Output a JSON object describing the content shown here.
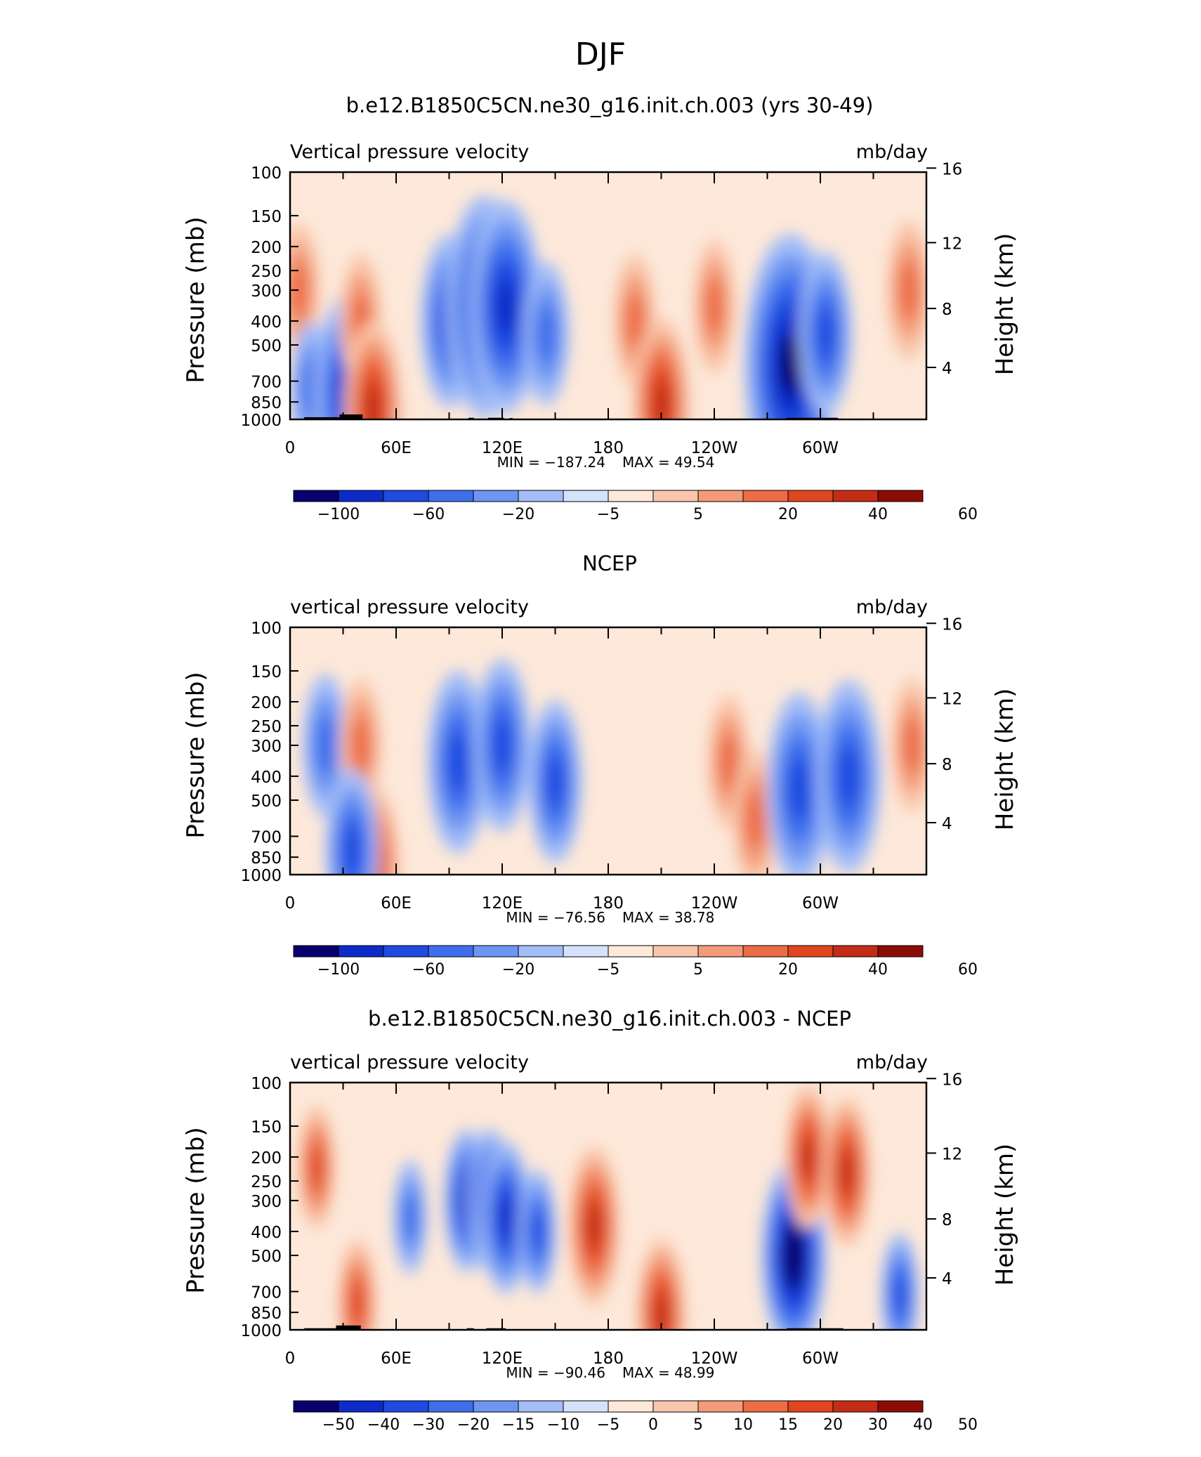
{
  "figure": {
    "season": "DJF"
  },
  "scales": {
    "p_ticks": [
      100,
      150,
      200,
      250,
      300,
      400,
      500,
      700,
      850,
      1000
    ],
    "h_ticks": [
      16,
      12,
      8,
      4
    ],
    "lon_ticks": [
      "0",
      "60E",
      "120E",
      "180",
      "120W",
      "60W"
    ],
    "lon_range": [
      0,
      360
    ]
  },
  "panels": [
    {
      "title": "b.e12.B1850C5CN.ne30_g16.init.ch.003 (yrs 30-49)",
      "left_label": "Vertical pressure velocity",
      "right_label": "mb/day",
      "ylabel": "Pressure (mb)",
      "y2label": "Height (km)",
      "min_text": "MIN = −187.24",
      "max_text": "MAX =   49.54",
      "cb_labels": [
        "−100",
        "−60",
        "−20",
        "−5",
        "5",
        "20",
        "40",
        "60"
      ],
      "show_land": true
    },
    {
      "title": "NCEP",
      "left_label": "vertical pressure velocity",
      "right_label": "mb/day",
      "ylabel": "Pressure (mb)",
      "y2label": "Height (km)",
      "min_text": "MIN = −76.56",
      "max_text": "MAX =   38.78",
      "cb_labels": [
        "−100",
        "−60",
        "−20",
        "−5",
        "5",
        "20",
        "40",
        "60"
      ],
      "show_land": false
    },
    {
      "title": "b.e12.B1850C5CN.ne30_g16.init.ch.003 - NCEP",
      "left_label": "vertical pressure velocity",
      "right_label": "mb/day",
      "ylabel": "Pressure (mb)",
      "y2label": "Height (km)",
      "min_text": "MIN = −90.46",
      "max_text": "MAX =   48.99",
      "cb_labels": [
        "−50",
        "−40",
        "−30",
        "−20",
        "−15",
        "−10",
        "−5",
        "0",
        "5",
        "10",
        "15",
        "20",
        "30",
        "40",
        "50"
      ],
      "show_land": true
    }
  ],
  "colors": {
    "levels": [
      "#08006e",
      "#0d2bc8",
      "#1f4be0",
      "#3e6eec",
      "#6d95f2",
      "#a3bdf8",
      "#d4e2fb",
      "#fde8d9",
      "#f9c6ab",
      "#f39b78",
      "#ec6c45",
      "#e0461f",
      "#c42d15",
      "#8c0d06"
    ],
    "land": "#000000"
  },
  "chart_data": [
    {
      "type": "heatmap",
      "title": "b.e12.B1850C5CN.ne30_g16.init.ch.003 (yrs 30-49)",
      "xlabel": "",
      "ylabel": "Pressure (mb)",
      "y2label": "Height (km)",
      "units": "mb/day",
      "xlim": [
        0,
        360
      ],
      "ylim": [
        1000,
        100
      ],
      "levels": [
        -100,
        -80,
        -60,
        -40,
        -20,
        -10,
        -5,
        0,
        5,
        10,
        20,
        30,
        40,
        50,
        60
      ],
      "min": -187.24,
      "max": 49.54,
      "features": [
        {
          "lon": 5,
          "p": 300,
          "value": 25
        },
        {
          "lon": 12,
          "p": 750,
          "value": -25
        },
        {
          "lon": 33,
          "p": 800,
          "value": -60
        },
        {
          "lon": 40,
          "p": 400,
          "value": 25
        },
        {
          "lon": 47,
          "p": 900,
          "value": 45
        },
        {
          "lon": 90,
          "p": 400,
          "value": -45
        },
        {
          "lon": 110,
          "p": 350,
          "value": -70
        },
        {
          "lon": 122,
          "p": 350,
          "value": -65
        },
        {
          "lon": 145,
          "p": 450,
          "value": -30
        },
        {
          "lon": 195,
          "p": 400,
          "value": 25
        },
        {
          "lon": 210,
          "p": 870,
          "value": 45
        },
        {
          "lon": 240,
          "p": 350,
          "value": 25
        },
        {
          "lon": 283,
          "p": 600,
          "value": -90
        },
        {
          "lon": 303,
          "p": 450,
          "value": -40
        },
        {
          "lon": 350,
          "p": 300,
          "value": 28
        }
      ]
    },
    {
      "type": "heatmap",
      "title": "NCEP",
      "xlabel": "",
      "ylabel": "Pressure (mb)",
      "y2label": "Height (km)",
      "units": "mb/day",
      "xlim": [
        0,
        360
      ],
      "ylim": [
        1000,
        100
      ],
      "levels": [
        -100,
        -80,
        -60,
        -40,
        -20,
        -10,
        -5,
        0,
        5,
        10,
        20,
        30,
        40,
        50,
        60
      ],
      "min": -76.56,
      "max": 38.78,
      "features": [
        {
          "lon": 20,
          "p": 300,
          "value": -30
        },
        {
          "lon": 40,
          "p": 300,
          "value": 25
        },
        {
          "lon": 48,
          "p": 900,
          "value": 35
        },
        {
          "lon": 35,
          "p": 800,
          "value": -40
        },
        {
          "lon": 95,
          "p": 350,
          "value": -50
        },
        {
          "lon": 120,
          "p": 300,
          "value": -45
        },
        {
          "lon": 150,
          "p": 420,
          "value": -40
        },
        {
          "lon": 248,
          "p": 350,
          "value": 25
        },
        {
          "lon": 263,
          "p": 600,
          "value": 28
        },
        {
          "lon": 288,
          "p": 450,
          "value": -55
        },
        {
          "lon": 316,
          "p": 400,
          "value": -55
        },
        {
          "lon": 352,
          "p": 300,
          "value": 25
        }
      ]
    },
    {
      "type": "heatmap",
      "title": "b.e12.B1850C5CN.ne30_g16.init.ch.003 - NCEP",
      "xlabel": "",
      "ylabel": "Pressure (mb)",
      "y2label": "Height (km)",
      "units": "mb/day",
      "xlim": [
        0,
        360
      ],
      "ylim": [
        1000,
        100
      ],
      "levels": [
        -50,
        -40,
        -30,
        -20,
        -15,
        -10,
        -5,
        0,
        5,
        10,
        15,
        20,
        30,
        40,
        50
      ],
      "min": -90.46,
      "max": 48.99,
      "features": [
        {
          "lon": 15,
          "p": 220,
          "value": 20
        },
        {
          "lon": 38,
          "p": 780,
          "value": 22
        },
        {
          "lon": 68,
          "p": 350,
          "value": -15
        },
        {
          "lon": 100,
          "p": 300,
          "value": -30
        },
        {
          "lon": 113,
          "p": 300,
          "value": -30
        },
        {
          "lon": 122,
          "p": 350,
          "value": -35
        },
        {
          "lon": 140,
          "p": 400,
          "value": -20
        },
        {
          "lon": 172,
          "p": 380,
          "value": 38
        },
        {
          "lon": 210,
          "p": 870,
          "value": 35
        },
        {
          "lon": 285,
          "p": 500,
          "value": -55
        },
        {
          "lon": 293,
          "p": 200,
          "value": 30
        },
        {
          "lon": 315,
          "p": 230,
          "value": 33
        },
        {
          "lon": 345,
          "p": 720,
          "value": -20
        }
      ]
    }
  ]
}
